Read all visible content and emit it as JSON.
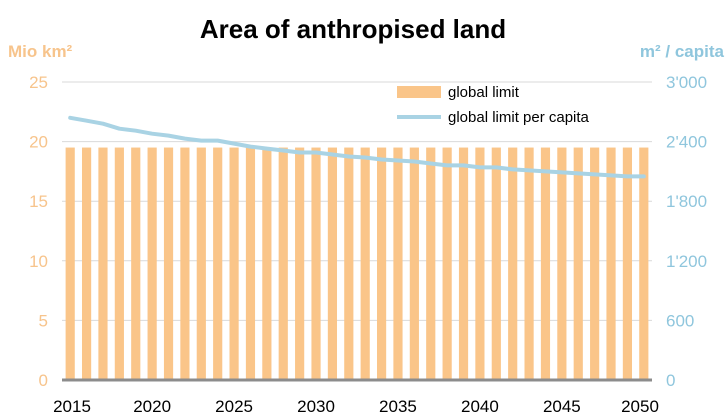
{
  "chart_data": {
    "type": "bar",
    "title": "Area of anthropised land",
    "left_unit": "Mio km²",
    "right_unit": "m² / capita",
    "x_ticks": [
      "2015",
      "2020",
      "2025",
      "2030",
      "2035",
      "2040",
      "2045",
      "2050"
    ],
    "y_left_ticks": [
      "0",
      "5",
      "10",
      "15",
      "20",
      "25"
    ],
    "y_right_ticks": [
      "0",
      "600",
      "1'200",
      "1'800",
      "2'400",
      "3'000"
    ],
    "ylim_left": [
      0,
      25
    ],
    "ylim_right": [
      0,
      3000
    ],
    "grid": true,
    "legend_position": "top-right",
    "colors": {
      "bar": "#fac589",
      "line": "#a9d3e4",
      "left_axis": "#f7c48c",
      "right_axis": "#8fc6dd",
      "grid": "#d9d9d9",
      "baseline": "#8c8c8c"
    },
    "x": [
      2015,
      2016,
      2017,
      2018,
      2019,
      2020,
      2021,
      2022,
      2023,
      2024,
      2025,
      2026,
      2027,
      2028,
      2029,
      2030,
      2031,
      2032,
      2033,
      2034,
      2035,
      2036,
      2037,
      2038,
      2039,
      2040,
      2041,
      2042,
      2043,
      2044,
      2045,
      2046,
      2047,
      2048,
      2049,
      2050
    ],
    "series": [
      {
        "name": "global limit",
        "type": "bar",
        "axis": "left",
        "values": [
          19.5,
          19.5,
          19.5,
          19.5,
          19.5,
          19.5,
          19.5,
          19.5,
          19.5,
          19.5,
          19.5,
          19.5,
          19.5,
          19.5,
          19.5,
          19.5,
          19.5,
          19.5,
          19.5,
          19.5,
          19.5,
          19.5,
          19.5,
          19.5,
          19.5,
          19.5,
          19.5,
          19.5,
          19.5,
          19.5,
          19.5,
          19.5,
          19.5,
          19.5,
          19.5,
          19.5
        ]
      },
      {
        "name": "global limit per capita",
        "type": "line",
        "axis": "right",
        "values": [
          2640,
          2610,
          2580,
          2530,
          2510,
          2480,
          2460,
          2430,
          2410,
          2410,
          2380,
          2350,
          2330,
          2310,
          2290,
          2290,
          2270,
          2250,
          2240,
          2220,
          2210,
          2200,
          2180,
          2160,
          2160,
          2140,
          2140,
          2120,
          2110,
          2100,
          2090,
          2080,
          2070,
          2060,
          2050,
          2050
        ]
      }
    ]
  }
}
